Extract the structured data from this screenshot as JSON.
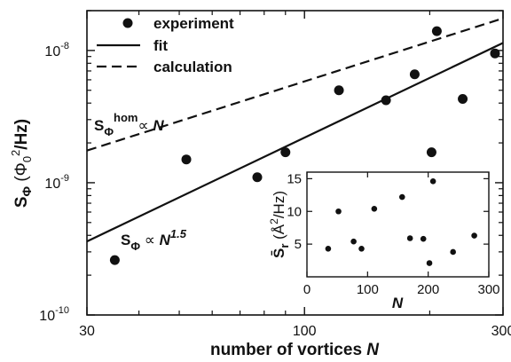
{
  "chart_data": [
    {
      "type": "scatter",
      "xlabel": "number of vortices N",
      "ylabel": "S_Φ (Φ0²/Hz)",
      "xscale": "log",
      "yscale": "log",
      "xlim": [
        30,
        300
      ],
      "ylim": [
        1e-10,
        2e-08
      ],
      "x_ticks": [
        {
          "value": 30,
          "label": "30"
        },
        {
          "value": 100,
          "label": "100"
        },
        {
          "value": 300,
          "label": "300"
        }
      ],
      "y_ticks": [
        {
          "value": 1e-10,
          "base": "10",
          "exp": "-10"
        },
        {
          "value": 1e-09,
          "base": "10",
          "exp": "-9"
        },
        {
          "value": 1e-08,
          "base": "10",
          "exp": "-8"
        }
      ],
      "legend": {
        "placement": "top-left",
        "entries": [
          {
            "label": "experiment",
            "marker": "dot"
          },
          {
            "label": "fit",
            "marker": "solid-line"
          },
          {
            "label": "calculation",
            "marker": "dashed-line"
          }
        ]
      },
      "series": [
        {
          "name": "experiment",
          "style": "dot",
          "x": [
            35,
            52,
            77,
            90,
            121,
            157,
            184,
            202,
            208,
            240,
            287
          ],
          "y": [
            2.6e-10,
            1.5e-09,
            1.1e-09,
            1.7e-09,
            5e-09,
            4.2e-09,
            6.6e-09,
            1.7e-09,
            1.4e-08,
            4.3e-09,
            9.5e-09
          ]
        },
        {
          "name": "fit",
          "style": "solid",
          "x": [
            30,
            300
          ],
          "y": [
            3.6e-10,
            1.14e-08
          ]
        },
        {
          "name": "calculation",
          "style": "dashed",
          "x": [
            30,
            300
          ],
          "y": [
            1.75e-09,
            1.75e-08
          ]
        }
      ],
      "annotations": [
        {
          "id": "hom",
          "S": "S",
          "sub": "Φ",
          "sup": "hom",
          "rel": "∝ ",
          "rhs": "N",
          "rhs_sup": ""
        },
        {
          "id": "fit",
          "S": "S",
          "sub": "Φ",
          "sup": "",
          "rel": "∝ ",
          "rhs": "N",
          "rhs_sup": "1.5"
        }
      ]
    },
    {
      "type": "scatter",
      "placement": "inset-bottom-right",
      "xlabel": "N",
      "ylabel": "S̄r (Å²/Hz)",
      "xlim": [
        0,
        300
      ],
      "ylim": [
        0,
        16
      ],
      "x_ticks": [
        0,
        100,
        200,
        300
      ],
      "y_ticks": [
        5,
        10,
        15
      ],
      "series": [
        {
          "name": "",
          "style": "dot",
          "x": [
            35,
            52,
            77,
            90,
            111,
            157,
            170,
            192,
            202,
            208,
            241,
            276
          ],
          "y": [
            4.3,
            10.0,
            5.4,
            4.3,
            10.4,
            12.2,
            5.9,
            5.8,
            2.1,
            14.6,
            3.8,
            6.3
          ]
        }
      ]
    }
  ]
}
